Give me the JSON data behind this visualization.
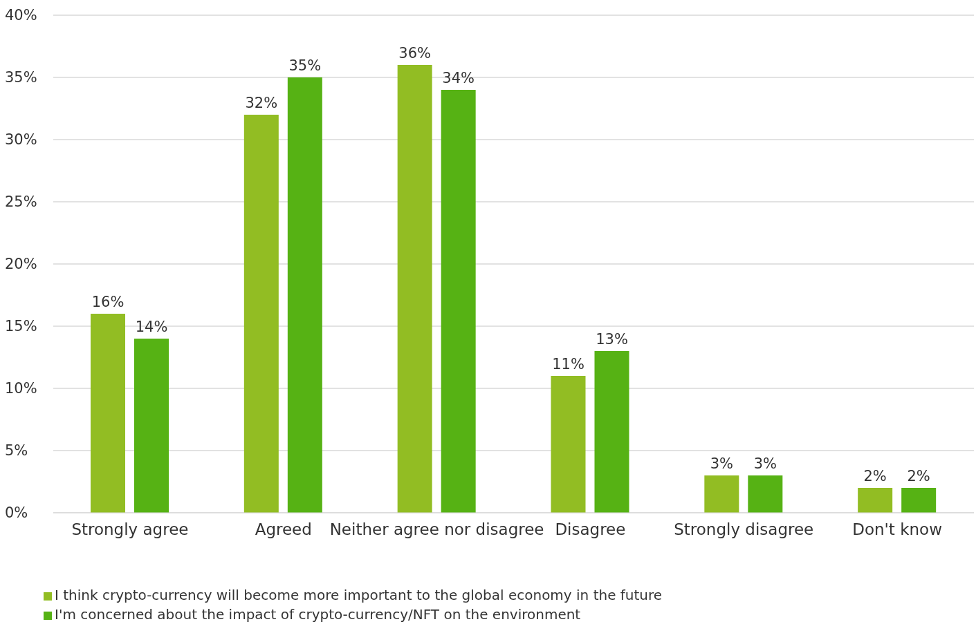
{
  "chart_data": {
    "type": "bar",
    "categories": [
      "Strongly agree",
      "Agreed",
      "Neither agree nor disagree",
      "Disagree",
      "Strongly disagree",
      "Don't know"
    ],
    "series": [
      {
        "name": "I think crypto-currency will become more important to the global economy in the future",
        "color": "#92bd23",
        "values": [
          16,
          32,
          36,
          11,
          3,
          2
        ],
        "value_labels": [
          "16%",
          "32%",
          "36%",
          "11%",
          "3%",
          "2%"
        ]
      },
      {
        "name": "I'm concerned about the impact of crypto-currency/NFT on the environment",
        "color": "#56b214",
        "values": [
          14,
          35,
          34,
          13,
          3,
          2
        ],
        "value_labels": [
          "14%",
          "35%",
          "34%",
          "13%",
          "3%",
          "2%"
        ]
      }
    ],
    "ylim": [
      0,
      40
    ],
    "yticks": [
      {
        "value": 0,
        "label": "0%"
      },
      {
        "value": 5,
        "label": "5%"
      },
      {
        "value": 10,
        "label": "10%"
      },
      {
        "value": 15,
        "label": "15%"
      },
      {
        "value": 20,
        "label": "20%"
      },
      {
        "value": 25,
        "label": "25%"
      },
      {
        "value": 30,
        "label": "30%"
      },
      {
        "value": 35,
        "label": "35%"
      },
      {
        "value": 40,
        "label": "40%"
      }
    ],
    "grid": "y",
    "legend": "bottom left"
  }
}
